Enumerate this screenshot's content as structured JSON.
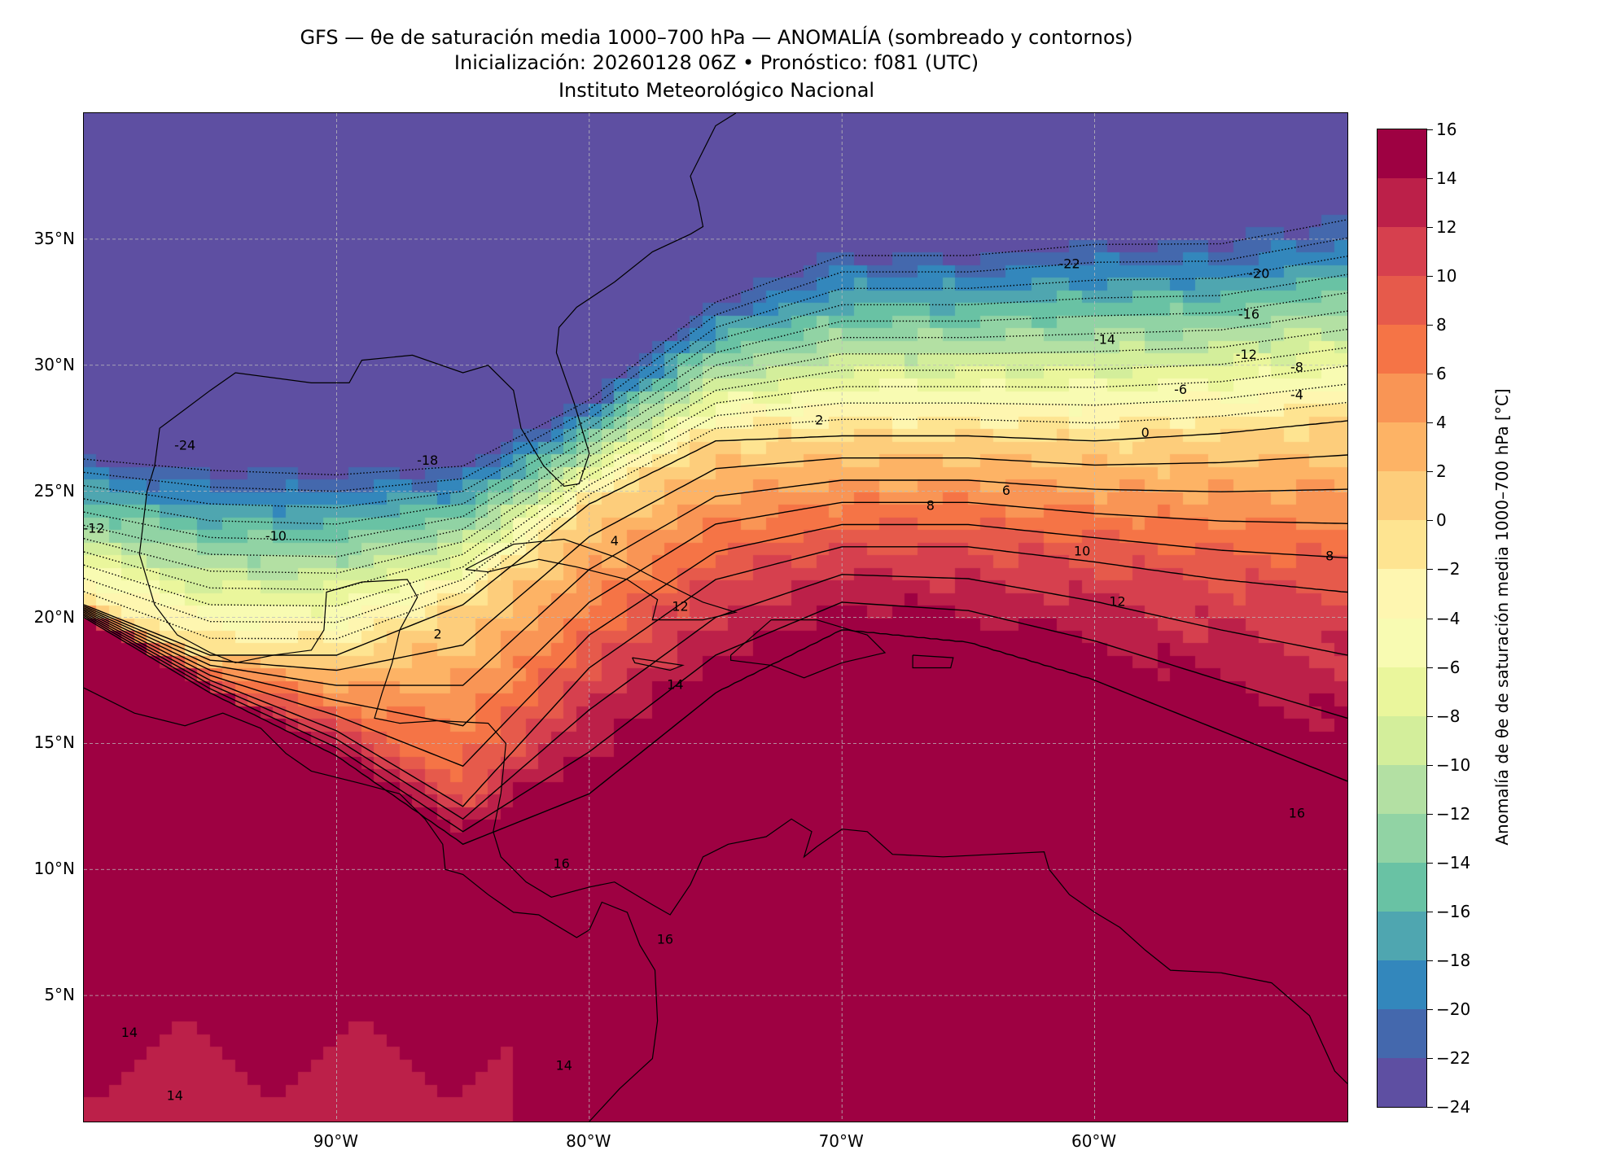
{
  "title": {
    "line1": "GFS — θe de saturación media 1000–700 hPa — ANOMALÍA (sombreado y contornos)",
    "line2": "Inicialización: 20260128 06Z   •   Pronóstico: f081 (UTC)",
    "line3": "Instituto Meteorológico Nacional"
  },
  "chart_data": {
    "type": "heatmap",
    "title": "GFS — θe de saturación media 1000–700 hPa — ANOMALÍA (sombreado y contornos)",
    "xlim": [
      -100,
      -50
    ],
    "ylim": [
      0,
      40
    ],
    "grid": true,
    "x_ticks": [
      {
        "value": -90,
        "label": "90°W"
      },
      {
        "value": -80,
        "label": "80°W"
      },
      {
        "value": -70,
        "label": "70°W"
      },
      {
        "value": -60,
        "label": "60°W"
      }
    ],
    "y_ticks": [
      {
        "value": 35,
        "label": "35°N"
      },
      {
        "value": 30,
        "label": "30°N"
      },
      {
        "value": 25,
        "label": "25°N"
      },
      {
        "value": 20,
        "label": "20°N"
      },
      {
        "value": 15,
        "label": "15°N"
      },
      {
        "value": 10,
        "label": "10°N"
      },
      {
        "value": 5,
        "label": "5°N"
      }
    ],
    "colorbar": {
      "label": "Anomalía de θe de saturación media 1000–700 hPa [°C]",
      "range": [
        -24,
        16
      ],
      "ticks": [
        {
          "value": 16,
          "label": "16"
        },
        {
          "value": 14,
          "label": "14"
        },
        {
          "value": 12,
          "label": "12"
        },
        {
          "value": 10,
          "label": "10"
        },
        {
          "value": 8,
          "label": "8"
        },
        {
          "value": 6,
          "label": "6"
        },
        {
          "value": 4,
          "label": "4"
        },
        {
          "value": 2,
          "label": "2"
        },
        {
          "value": 0,
          "label": "0"
        },
        {
          "value": -2,
          "label": "−2"
        },
        {
          "value": -4,
          "label": "−4"
        },
        {
          "value": -6,
          "label": "−6"
        },
        {
          "value": -8,
          "label": "−8"
        },
        {
          "value": -10,
          "label": "−10"
        },
        {
          "value": -12,
          "label": "−12"
        },
        {
          "value": -14,
          "label": "−14"
        },
        {
          "value": -16,
          "label": "−16"
        },
        {
          "value": -18,
          "label": "−18"
        },
        {
          "value": -20,
          "label": "−20"
        },
        {
          "value": -22,
          "label": "−22"
        },
        {
          "value": -24,
          "label": "−24"
        }
      ],
      "colors": [
        "#5e4fa2",
        "#4468ad",
        "#3387bc",
        "#4fa6b0",
        "#69c2a4",
        "#91d3a4",
        "#b3e0a3",
        "#d3ee9b",
        "#eaf69c",
        "#f8fbb2",
        "#fef6b0",
        "#fee491",
        "#fdcd7b",
        "#fdb365",
        "#f99555",
        "#f57446",
        "#e65a4b",
        "#d6404e",
        "#bc2049",
        "#9e0142"
      ]
    },
    "contour_labels": [
      {
        "text": "-24",
        "lon": -96,
        "lat": 26.8
      },
      {
        "text": "-18",
        "lon": -86.4,
        "lat": 26.2
      },
      {
        "text": "-10",
        "lon": -92.4,
        "lat": 23.2
      },
      {
        "text": "-12",
        "lon": -99.6,
        "lat": 23.5
      },
      {
        "text": "-22",
        "lon": -61,
        "lat": 34
      },
      {
        "text": "-20",
        "lon": -53.5,
        "lat": 33.6
      },
      {
        "text": "-16",
        "lon": -53.9,
        "lat": 32
      },
      {
        "text": "-14",
        "lon": -59.6,
        "lat": 31
      },
      {
        "text": "-12",
        "lon": -54,
        "lat": 30.4
      },
      {
        "text": "-8",
        "lon": -52,
        "lat": 29.9
      },
      {
        "text": "-6",
        "lon": -56.6,
        "lat": 29
      },
      {
        "text": "-4",
        "lon": -52,
        "lat": 28.8
      },
      {
        "text": "2",
        "lon": -70.9,
        "lat": 27.8
      },
      {
        "text": "0",
        "lon": -58,
        "lat": 27.3
      },
      {
        "text": "6",
        "lon": -63.5,
        "lat": 25
      },
      {
        "text": "8",
        "lon": -66.5,
        "lat": 24.4
      },
      {
        "text": "10",
        "lon": -60.5,
        "lat": 22.6
      },
      {
        "text": "12",
        "lon": -59.1,
        "lat": 20.6
      },
      {
        "text": "16",
        "lon": -52,
        "lat": 12.2
      },
      {
        "text": "8",
        "lon": -50.7,
        "lat": 22.4
      },
      {
        "text": "4",
        "lon": -79,
        "lat": 23
      },
      {
        "text": "2",
        "lon": -86,
        "lat": 19.3
      },
      {
        "text": "12",
        "lon": -76.4,
        "lat": 20.4
      },
      {
        "text": "14",
        "lon": -76.6,
        "lat": 17.3
      },
      {
        "text": "16",
        "lon": -81.1,
        "lat": 10.2
      },
      {
        "text": "16",
        "lon": -77,
        "lat": 7.2
      },
      {
        "text": "14",
        "lon": -98.2,
        "lat": 3.5
      },
      {
        "text": "14",
        "lon": -81,
        "lat": 2.2
      },
      {
        "text": "14",
        "lon": -96.4,
        "lat": 1
      }
    ]
  }
}
